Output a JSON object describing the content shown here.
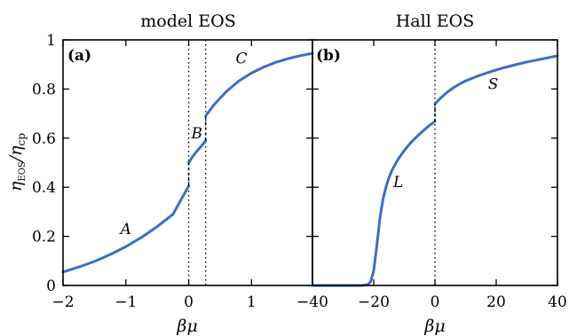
{
  "chart_data": [
    {
      "type": "line",
      "title": "model EOS",
      "panel_tag": "(a)",
      "xlabel": "βμ",
      "ylabel_main": "η",
      "ylabel_sub1": "EOS",
      "ylabel_mid": "/η",
      "ylabel_sub2": "cp",
      "xlim": [
        -2,
        1.97
      ],
      "ylim": [
        0,
        1
      ],
      "xticks": [
        -2,
        -1,
        0,
        1
      ],
      "xtick_labels": [
        "−2",
        "−1",
        "0",
        "1"
      ],
      "yticks": [
        0,
        0.2,
        0.4,
        0.6,
        0.8,
        1
      ],
      "ytick_labels": [
        "0",
        "0.2",
        "0.4",
        "0.6",
        "0.8",
        "1"
      ],
      "vertical_dotted_lines": [
        0,
        0.27
      ],
      "curve_color": "#3a6fc4",
      "series": [
        {
          "label": "A",
          "x": [
            -2.0,
            -1.75,
            -1.5,
            -1.25,
            -1.0,
            -0.75,
            -0.5,
            -0.25,
            0.0
          ],
          "y": [
            0.055,
            0.075,
            0.098,
            0.126,
            0.158,
            0.196,
            0.24,
            0.29,
            0.405
          ]
        },
        {
          "label": "B",
          "x": [
            0.0,
            0.05,
            0.1,
            0.15,
            0.2,
            0.27
          ],
          "y": [
            0.5,
            0.52,
            0.537,
            0.553,
            0.567,
            0.59
          ]
        },
        {
          "label": "C",
          "x": [
            0.27,
            0.4,
            0.6,
            0.8,
            1.0,
            1.2,
            1.4,
            1.6,
            1.8,
            1.97
          ],
          "y": [
            0.69,
            0.735,
            0.79,
            0.833,
            0.865,
            0.89,
            0.91,
            0.925,
            0.937,
            0.945
          ]
        }
      ],
      "jumps": [
        {
          "x": 0.0,
          "y": [
            0.405,
            0.5
          ]
        },
        {
          "x": 0.27,
          "y": [
            0.59,
            0.69
          ]
        }
      ],
      "curve_labels": [
        {
          "text": "A",
          "x": -1.0,
          "y": 0.21
        },
        {
          "text": "B",
          "x": 0.13,
          "y": 0.6
        },
        {
          "text": "C",
          "x": 0.84,
          "y": 0.905
        }
      ]
    },
    {
      "type": "line",
      "title": "Hall EOS",
      "panel_tag": "(b)",
      "xlabel": "βμ",
      "xlim": [
        -40,
        40
      ],
      "ylim": [
        0,
        1
      ],
      "xticks": [
        -40,
        -20,
        0,
        20,
        40
      ],
      "xtick_labels": [
        "−40",
        "−20",
        "0",
        "20",
        "40"
      ],
      "yticks": [
        0,
        0.2,
        0.4,
        0.6,
        0.8,
        1
      ],
      "vertical_dotted_lines": [
        0
      ],
      "curve_color": "#3a6fc4",
      "series": [
        {
          "label": "L",
          "x": [
            -40,
            -30,
            -24,
            -22,
            -21,
            -20,
            -19,
            -18,
            -17,
            -16,
            -15,
            -14,
            -12,
            -10,
            -8,
            -6,
            -4,
            -2,
            0
          ],
          "y": [
            0.0,
            0.0,
            0.0,
            0.003,
            0.015,
            0.06,
            0.16,
            0.27,
            0.35,
            0.4,
            0.44,
            0.47,
            0.515,
            0.55,
            0.58,
            0.605,
            0.628,
            0.65,
            0.668
          ]
        },
        {
          "label": "S",
          "x": [
            0,
            2,
            4,
            6,
            8,
            10,
            14,
            18,
            22,
            26,
            30,
            34,
            38,
            40
          ],
          "y": [
            0.74,
            0.765,
            0.787,
            0.805,
            0.82,
            0.833,
            0.853,
            0.87,
            0.885,
            0.898,
            0.91,
            0.92,
            0.93,
            0.935
          ]
        }
      ],
      "jumps": [
        {
          "x": 0,
          "y": [
            0.668,
            0.74
          ]
        }
      ],
      "curve_labels": [
        {
          "text": "L",
          "x": -12,
          "y": 0.4
        },
        {
          "text": "S",
          "x": 19,
          "y": 0.8
        }
      ]
    }
  ]
}
